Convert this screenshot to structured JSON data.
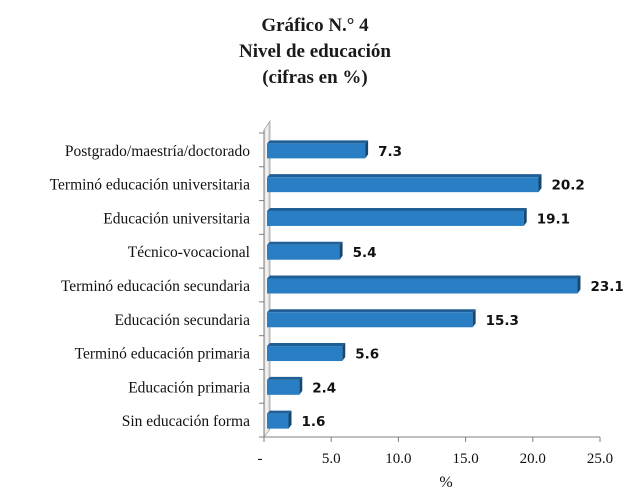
{
  "chart_data": {
    "type": "bar",
    "orientation": "horizontal",
    "title": [
      "Gráfico N.° 4",
      "Nivel de educación",
      "(cifras en %)"
    ],
    "categories": [
      "Postgrado/maestría/doctorado",
      "Terminó educación universitaria",
      "Educación universitaria",
      "Técnico-vocacional",
      "Terminó educación secundaria",
      "Educación secundaria",
      "Terminó educación primaria",
      "Educación primaria",
      "Sin educación forma"
    ],
    "values": [
      7.3,
      20.2,
      19.1,
      5.4,
      23.1,
      15.3,
      5.6,
      2.4,
      1.6
    ],
    "value_labels": [
      "7.3",
      "20.2",
      "19.1",
      "5.4",
      "23.1",
      "15.3",
      "5.6",
      "2.4",
      "1.6"
    ],
    "xlabel": "%",
    "ylabel": "",
    "xlim": [
      0,
      25
    ],
    "xticks": [
      0,
      5,
      10,
      15,
      20,
      25
    ],
    "xtick_labels": [
      "-",
      "5.0",
      "10.0",
      "15.0",
      "20.0",
      "25.0"
    ],
    "grid": false,
    "legend": "none",
    "style": "3d",
    "colors": {
      "bar": "#2a7fc4",
      "bar_top": "#1f5f96",
      "bar_side": "#17466f",
      "axis": "#7f7f7f"
    }
  }
}
